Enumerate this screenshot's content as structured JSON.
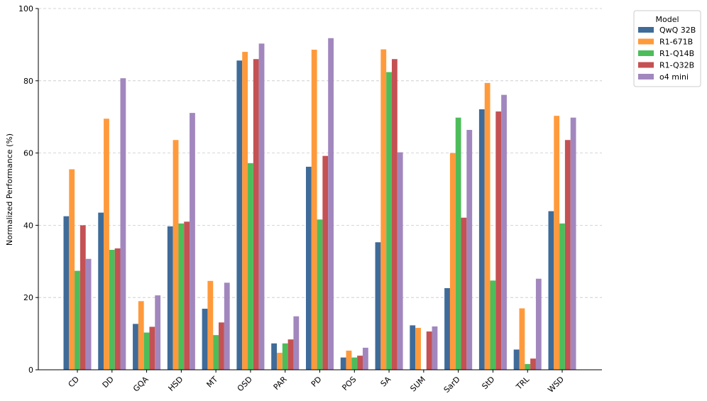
{
  "chart_data": {
    "type": "bar",
    "ylabel": "Normalized Performance (%)",
    "xlabel": "",
    "title": "",
    "ylim": [
      0,
      100
    ],
    "yticks": [
      0,
      20,
      40,
      60,
      80,
      100
    ],
    "grid": "horizontal dashed",
    "legend_title": "Model",
    "legend_placement": "outside top-right",
    "categories": [
      "CD",
      "DD",
      "GQA",
      "HSD",
      "MT",
      "OSD",
      "PAR",
      "PD",
      "POS",
      "SA",
      "SUM",
      "SarD",
      "StD",
      "TRL",
      "WSD"
    ],
    "series": [
      {
        "name": "QwQ 32B",
        "color": "#3f6b99",
        "values": [
          42.5,
          43.5,
          12.7,
          39.7,
          16.9,
          85.6,
          7.3,
          56.2,
          3.4,
          35.3,
          12.3,
          22.6,
          72.1,
          5.6,
          43.9
        ]
      },
      {
        "name": "R1-671B",
        "color": "#ff9a3c",
        "values": [
          55.5,
          69.5,
          19.0,
          63.6,
          24.6,
          88.0,
          4.7,
          88.6,
          5.3,
          88.7,
          11.6,
          60.0,
          79.4,
          17.0,
          70.3
        ]
      },
      {
        "name": "R1-Q14B",
        "color": "#4dbd5a",
        "values": [
          27.4,
          33.2,
          10.3,
          40.5,
          9.6,
          57.2,
          7.3,
          41.6,
          3.4,
          82.4,
          0,
          69.8,
          24.7,
          1.6,
          40.5
        ]
      },
      {
        "name": "R1-Q32B",
        "color": "#c45153",
        "values": [
          40.0,
          33.6,
          11.9,
          41.0,
          13.1,
          86.0,
          8.4,
          59.2,
          3.9,
          86.0,
          10.6,
          42.1,
          71.5,
          3.1,
          63.6
        ]
      },
      {
        "name": "o4 mini",
        "color": "#a287be",
        "values": [
          30.7,
          80.7,
          20.6,
          71.1,
          24.1,
          90.3,
          14.8,
          91.8,
          6.1,
          60.2,
          12.0,
          66.4,
          76.1,
          25.2,
          69.8
        ]
      }
    ]
  }
}
